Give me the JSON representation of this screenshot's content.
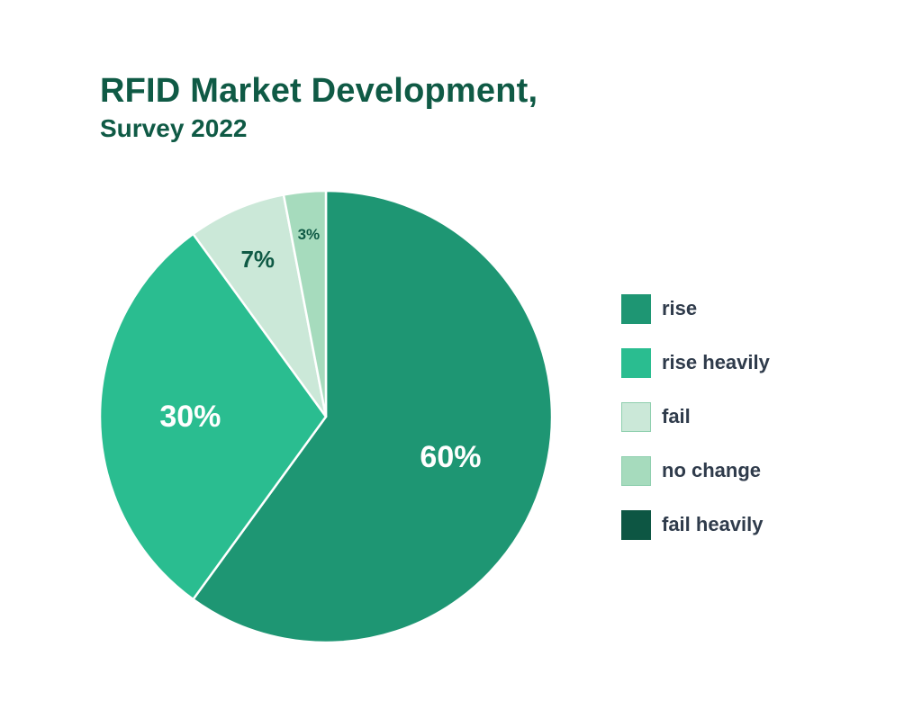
{
  "title": "RFID Market Development,",
  "subtitle": "Survey 2022",
  "chart_data": {
    "type": "pie",
    "title": "RFID Market Development, Survey 2022",
    "start_angle_deg": 0,
    "direction": "clockwise",
    "slices": [
      {
        "label": "rise",
        "value": 60,
        "display": "60%",
        "color": "#1e9673",
        "label_color": "#ffffff"
      },
      {
        "label": "rise heavily",
        "value": 30,
        "display": "30%",
        "color": "#2abd90",
        "label_color": "#ffffff"
      },
      {
        "label": "fail",
        "value": 7,
        "display": "7%",
        "color": "#cbe8d8",
        "label_color": "#0f5a45"
      },
      {
        "label": "no change",
        "value": 3,
        "display": "3%",
        "color": "#a6dbbd",
        "label_color": "#0f5a45"
      },
      {
        "label": "fail heavily",
        "value": 0,
        "display": "",
        "color": "#0d5643",
        "label_color": "#ffffff"
      }
    ],
    "legend": {
      "position": "right",
      "items": [
        "rise",
        "rise heavily",
        "fail",
        "no change",
        "fail heavily"
      ]
    }
  }
}
